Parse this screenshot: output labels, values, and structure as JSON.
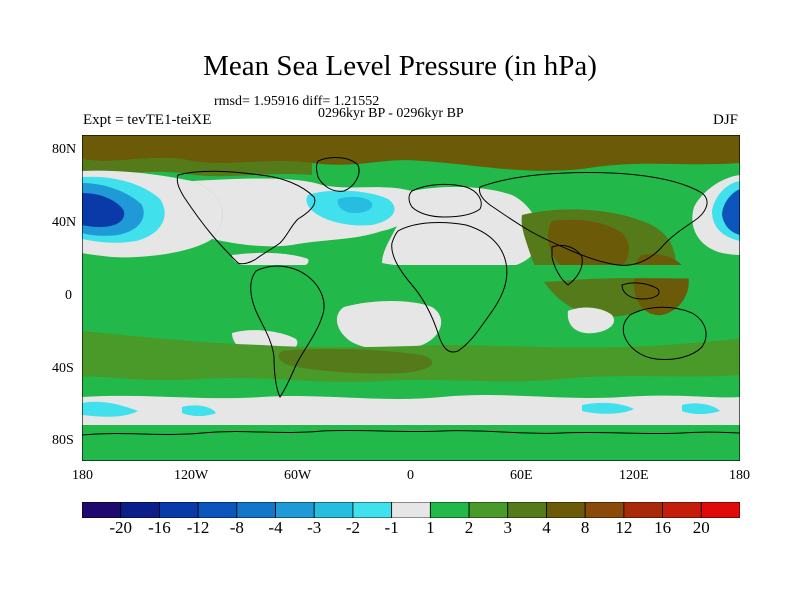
{
  "title": "Mean Sea Level Pressure (in hPa)",
  "stats": "rmsd= 1.95916  diff= 1.21552",
  "period": "0296kyr BP - 0296kyr BP",
  "experiment": "Expt = tevTE1-teiXE",
  "season": "DJF",
  "lat_ticks": [
    "80N",
    "40N",
    "0",
    "40S",
    "80S"
  ],
  "lon_ticks": [
    "180",
    "120W",
    "60W",
    "0",
    "60E",
    "120E",
    "180"
  ],
  "colorbar": {
    "labels": [
      "-20",
      "-16",
      "-12",
      "-8",
      "-4",
      "-3",
      "-2",
      "-1",
      "1",
      "2",
      "3",
      "4",
      "8",
      "12",
      "16",
      "20"
    ],
    "colors": [
      "#1e0a6e",
      "#0a1f8a",
      "#0a3aa8",
      "#0c55bd",
      "#1476c8",
      "#1f9ad6",
      "#27bde0",
      "#40e0ec",
      "#e6e6e6",
      "#22b84a",
      "#4a9a2a",
      "#557a1a",
      "#6b5a08",
      "#8a4a0a",
      "#a82a0a",
      "#c41e0a",
      "#e00a0a"
    ]
  },
  "field_colors": {
    "land_mask_light": "#e6e6e6",
    "positive_1_2": "#22b84a",
    "positive_2_3": "#4a9a2a",
    "positive_3_4": "#557a1a",
    "positive_4_8": "#6b5a08",
    "negative_m1_m2": "#40e0ec",
    "negative_m2_m3": "#27bde0",
    "negative_m3_m4": "#1f9ad6",
    "negative_m8_m12": "#0c55bd",
    "negative_m12_m16": "#0a3aa8"
  }
}
